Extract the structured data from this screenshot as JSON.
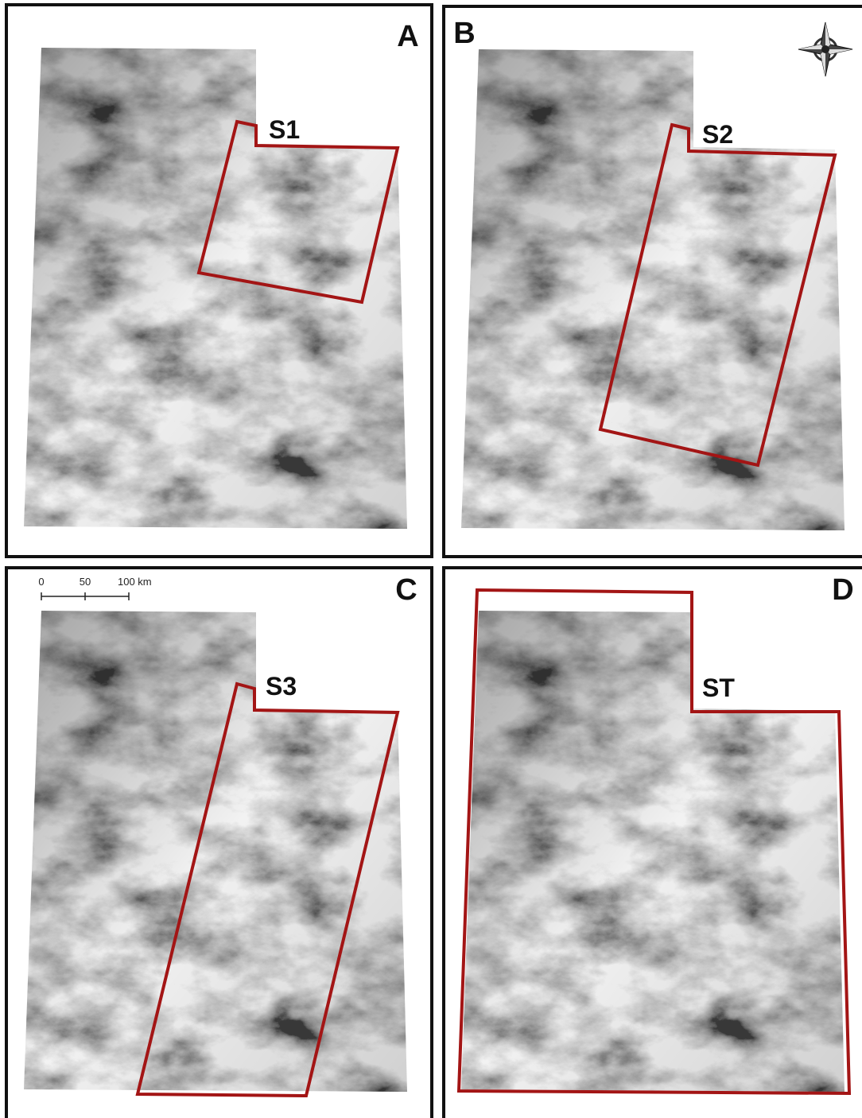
{
  "panels": [
    {
      "letter": "A",
      "region": "S1"
    },
    {
      "letter": "B",
      "region": "S2"
    },
    {
      "letter": "C",
      "region": "S3"
    },
    {
      "letter": "D",
      "region": "ST"
    }
  ],
  "scale_bar": {
    "labels": [
      "0",
      "50",
      "100 km"
    ]
  }
}
